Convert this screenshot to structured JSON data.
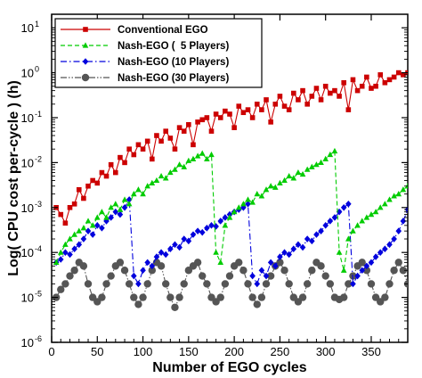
{
  "chart_data": {
    "type": "line",
    "xlabel": "Number of EGO cycles",
    "ylabel": "Log( CPU cost per-cycle ) (h)",
    "xlim": [
      0,
      390
    ],
    "ylim": [
      1e-06,
      20
    ],
    "y_scale": "log",
    "x_ticks": [
      0,
      50,
      100,
      150,
      200,
      250,
      300,
      350
    ],
    "y_ticks": [
      {
        "value": 1e-06,
        "base": "10",
        "exp": "-6"
      },
      {
        "value": 1e-05,
        "base": "10",
        "exp": "-5"
      },
      {
        "value": 0.0001,
        "base": "10",
        "exp": "-4"
      },
      {
        "value": 0.001,
        "base": "10",
        "exp": "-3"
      },
      {
        "value": 0.01,
        "base": "10",
        "exp": "-2"
      },
      {
        "value": 0.1,
        "base": "10",
        "exp": "-1"
      },
      {
        "value": 1,
        "base": "10",
        "exp": "0"
      },
      {
        "value": 10,
        "base": "10",
        "exp": "1"
      }
    ],
    "grid": false,
    "legend_position": "top-left",
    "series": [
      {
        "name": "Conventional EGO",
        "color": "#cc0000",
        "dash": "solid",
        "marker": "square",
        "x": [
          5,
          10,
          15,
          20,
          25,
          30,
          35,
          40,
          45,
          50,
          55,
          60,
          65,
          70,
          75,
          80,
          85,
          90,
          95,
          100,
          105,
          110,
          115,
          120,
          125,
          130,
          135,
          140,
          145,
          150,
          155,
          160,
          165,
          170,
          175,
          180,
          185,
          190,
          195,
          200,
          205,
          210,
          215,
          220,
          225,
          230,
          235,
          240,
          245,
          250,
          255,
          260,
          265,
          270,
          275,
          280,
          285,
          290,
          295,
          300,
          305,
          310,
          315,
          320,
          325,
          330,
          335,
          340,
          345,
          350,
          355,
          360,
          365,
          370,
          375,
          380,
          385,
          390
        ],
        "y": [
          0.001,
          0.0007,
          0.00045,
          0.001,
          0.0012,
          0.0025,
          0.0016,
          0.003,
          0.004,
          0.0035,
          0.006,
          0.005,
          0.009,
          0.006,
          0.013,
          0.01,
          0.02,
          0.015,
          0.025,
          0.02,
          0.03,
          0.012,
          0.04,
          0.03,
          0.05,
          0.035,
          0.02,
          0.06,
          0.05,
          0.07,
          0.025,
          0.08,
          0.09,
          0.1,
          0.05,
          0.12,
          0.1,
          0.14,
          0.12,
          0.06,
          0.18,
          0.13,
          0.15,
          0.1,
          0.2,
          0.15,
          0.25,
          0.08,
          0.2,
          0.3,
          0.18,
          0.15,
          0.35,
          0.25,
          0.4,
          0.2,
          0.3,
          0.45,
          0.25,
          0.5,
          0.35,
          0.4,
          0.3,
          0.6,
          0.15,
          0.7,
          0.4,
          0.5,
          0.8,
          0.45,
          0.5,
          0.9,
          0.6,
          0.7,
          0.8,
          1.0,
          0.9,
          1.0
        ]
      },
      {
        "name": "Nash-EGO (  5 Players)",
        "color": "#00cc00",
        "dash": "dashed",
        "marker": "triangle",
        "x": [
          5,
          10,
          15,
          20,
          25,
          30,
          35,
          40,
          45,
          50,
          55,
          60,
          65,
          70,
          75,
          80,
          85,
          90,
          95,
          100,
          105,
          110,
          115,
          120,
          125,
          130,
          135,
          140,
          145,
          150,
          155,
          160,
          165,
          170,
          175,
          180,
          185,
          190,
          195,
          200,
          205,
          210,
          215,
          220,
          225,
          230,
          235,
          240,
          245,
          250,
          255,
          260,
          265,
          270,
          275,
          280,
          285,
          290,
          295,
          300,
          305,
          310,
          315,
          320,
          325,
          330,
          335,
          340,
          345,
          350,
          355,
          360,
          365,
          370,
          375,
          380,
          385,
          390
        ],
        "y": [
          6e-05,
          0.0001,
          0.00015,
          0.0002,
          0.00025,
          0.0003,
          0.00035,
          0.0005,
          0.0004,
          0.0006,
          0.0008,
          0.0006,
          0.001,
          0.0012,
          0.0009,
          0.0015,
          0.0012,
          0.002,
          0.0025,
          0.002,
          0.003,
          0.0035,
          0.004,
          0.005,
          0.0045,
          0.006,
          0.007,
          0.009,
          0.008,
          0.011,
          0.012,
          0.014,
          0.016,
          0.012,
          0.015,
          0.0001,
          6e-05,
          0.0004,
          0.0006,
          0.0008,
          0.001,
          0.0012,
          0.0015,
          0.0013,
          0.002,
          0.0018,
          0.0025,
          0.003,
          0.0028,
          0.0035,
          0.004,
          0.005,
          0.0045,
          0.006,
          0.0055,
          0.007,
          0.008,
          0.009,
          0.01,
          0.012,
          0.015,
          0.018,
          0.0001,
          4e-05,
          0.0002,
          0.0003,
          0.0004,
          0.0005,
          0.0006,
          0.0007,
          0.0008,
          0.001,
          0.0012,
          0.0015,
          0.0018,
          0.002,
          0.0025,
          0.003
        ]
      },
      {
        "name": "Nash-EGO (10 Players)",
        "color": "#0000dd",
        "dash": "dashdot",
        "marker": "diamond",
        "x": [
          5,
          10,
          15,
          20,
          25,
          30,
          35,
          40,
          45,
          50,
          55,
          60,
          65,
          70,
          75,
          80,
          85,
          90,
          95,
          100,
          105,
          110,
          115,
          120,
          125,
          130,
          135,
          140,
          145,
          150,
          155,
          160,
          165,
          170,
          175,
          180,
          185,
          190,
          195,
          200,
          205,
          210,
          215,
          220,
          225,
          230,
          235,
          240,
          245,
          250,
          255,
          260,
          265,
          270,
          275,
          280,
          285,
          290,
          295,
          300,
          305,
          310,
          315,
          320,
          325,
          330,
          335,
          340,
          345,
          350,
          355,
          360,
          365,
          370,
          375,
          380,
          385,
          390
        ],
        "y": [
          6e-05,
          7e-05,
          0.0001,
          9e-05,
          0.00012,
          0.00015,
          0.0002,
          0.0003,
          0.00025,
          0.0004,
          0.00035,
          0.0005,
          0.0006,
          0.0008,
          0.0007,
          0.001,
          0.0015,
          3e-05,
          2e-05,
          4e-05,
          6e-05,
          5e-05,
          8e-05,
          0.0001,
          9e-05,
          0.00012,
          0.00015,
          0.00013,
          0.0002,
          0.00018,
          0.00025,
          0.0003,
          0.00028,
          0.00035,
          0.0004,
          0.00038,
          0.0005,
          0.0006,
          0.0007,
          0.0008,
          0.0009,
          0.001,
          0.0012,
          3e-05,
          2e-05,
          4e-05,
          3e-05,
          6e-05,
          5e-05,
          8e-05,
          0.0001,
          9e-05,
          0.00012,
          0.00015,
          0.00013,
          0.0002,
          0.00018,
          0.00025,
          0.0003,
          0.0004,
          0.0005,
          0.0006,
          0.0008,
          0.001,
          0.0012,
          2e-05,
          3e-05,
          4e-05,
          5e-05,
          6e-05,
          8e-05,
          0.0001,
          0.00012,
          0.00015,
          0.0002,
          0.0003,
          0.0005,
          0.0009
        ]
      },
      {
        "name": "Nash-EGO (30 Players)",
        "color": "#555555",
        "dash": "dashdotdot",
        "marker": "circle",
        "x": [
          5,
          10,
          15,
          20,
          25,
          30,
          35,
          40,
          45,
          50,
          55,
          60,
          65,
          70,
          75,
          80,
          85,
          90,
          95,
          100,
          105,
          110,
          115,
          120,
          125,
          130,
          135,
          140,
          145,
          150,
          155,
          160,
          165,
          170,
          175,
          180,
          185,
          190,
          195,
          200,
          205,
          210,
          215,
          220,
          225,
          230,
          235,
          240,
          245,
          250,
          255,
          260,
          265,
          270,
          275,
          280,
          285,
          290,
          295,
          300,
          305,
          310,
          315,
          320,
          325,
          330,
          335,
          340,
          345,
          350,
          355,
          360,
          365,
          370,
          375,
          380,
          385,
          390
        ],
        "y": [
          1e-05,
          1.5e-05,
          2e-05,
          3e-05,
          4e-05,
          6e-05,
          5e-05,
          2e-05,
          1e-05,
          8e-06,
          1e-05,
          2e-05,
          3e-05,
          5e-05,
          6e-05,
          4e-05,
          2e-05,
          1e-05,
          7e-06,
          1e-05,
          2e-05,
          4e-05,
          6e-05,
          5e-05,
          2e-05,
          1e-05,
          6e-06,
          1e-05,
          2e-05,
          4e-05,
          5e-05,
          6e-05,
          3e-05,
          2e-05,
          1e-05,
          8e-06,
          1e-05,
          2e-05,
          3e-05,
          5e-05,
          6e-05,
          4e-05,
          2e-05,
          1e-05,
          7e-06,
          1e-05,
          2e-05,
          3e-05,
          5e-05,
          6e-05,
          4e-05,
          2e-05,
          1e-05,
          8e-06,
          1e-05,
          2e-05,
          4e-05,
          6e-05,
          5e-05,
          3e-05,
          2e-05,
          1e-05,
          9e-06,
          1e-05,
          2e-05,
          3e-05,
          5e-05,
          6e-05,
          4e-05,
          2e-05,
          1e-05,
          8e-06,
          1e-05,
          2e-05,
          4e-05,
          6e-05,
          4e-05,
          2e-05
        ]
      }
    ]
  }
}
